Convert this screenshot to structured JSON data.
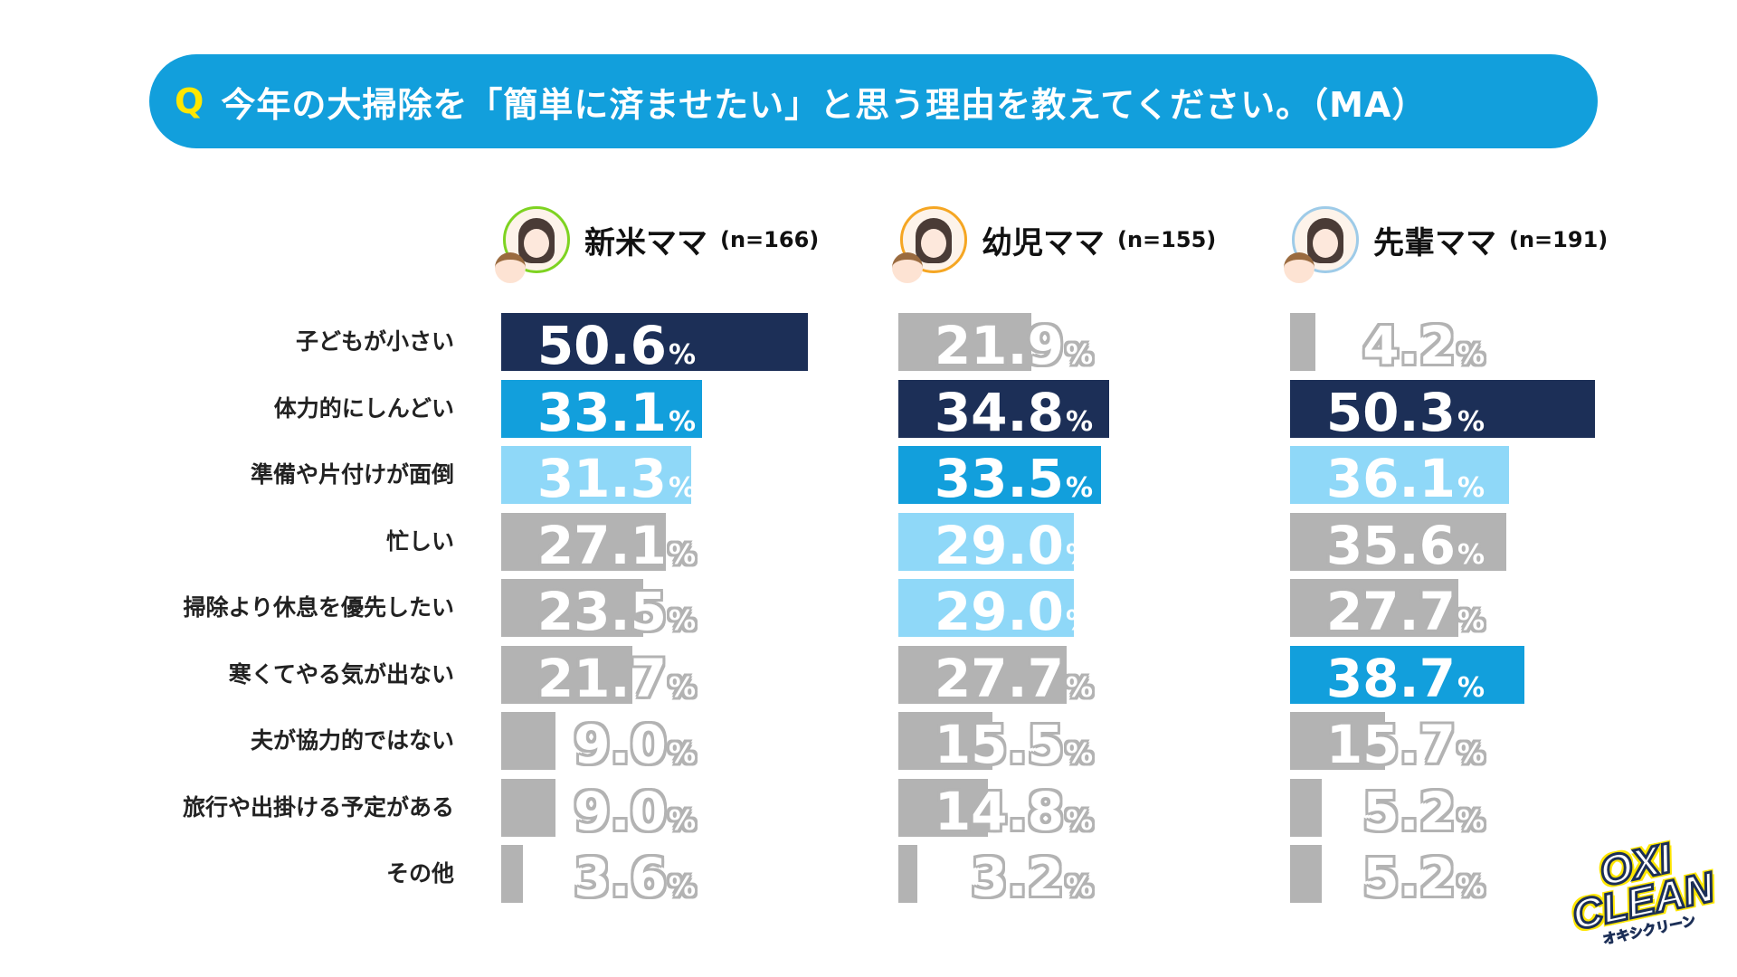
{
  "banner": {
    "q": "Q",
    "question": "今年の大掃除を「簡単に済ませたい」と思う理由を教えてください。（MA）"
  },
  "logo": {
    "line1": "OXI",
    "line2": "CLEAN",
    "line3": "オキシクリーン"
  },
  "colors": {
    "top1": "#1c2f57",
    "top2": "#129fdc",
    "top3": "#8fd8f8",
    "other": "#b3b3b3",
    "banner": "#129fdc"
  },
  "chart_data": {
    "type": "bar",
    "orientation": "horizontal",
    "title": "今年の大掃除を「簡単に済ませたい」と思う理由を教えてください。（MA）",
    "unit": "%",
    "categories": [
      "子どもが小さい",
      "体力的にしんどい",
      "準備や片付けが面倒",
      "忙しい",
      "掃除より休息を優先したい",
      "寒くてやる気が出ない",
      "夫が協力的ではない",
      "旅行や出掛ける予定がある",
      "その他"
    ],
    "series": [
      {
        "name": "新米ママ",
        "n": "(n=166)",
        "values": [
          50.6,
          33.1,
          31.3,
          27.1,
          23.5,
          21.7,
          9.0,
          9.0,
          3.6
        ]
      },
      {
        "name": "幼児ママ",
        "n": "(n=155)",
        "values": [
          21.9,
          34.8,
          33.5,
          29.0,
          29.0,
          27.7,
          15.5,
          14.8,
          3.2
        ]
      },
      {
        "name": "先輩ママ",
        "n": "(n=191)",
        "values": [
          4.2,
          50.3,
          36.1,
          35.6,
          27.7,
          38.7,
          15.7,
          5.2,
          5.2
        ]
      }
    ],
    "ranks": [
      [
        1,
        2,
        3,
        0,
        0,
        0,
        0,
        0,
        0
      ],
      [
        0,
        1,
        2,
        3,
        3,
        0,
        0,
        0,
        0
      ],
      [
        0,
        1,
        3,
        0,
        0,
        2,
        0,
        0,
        0
      ]
    ]
  }
}
